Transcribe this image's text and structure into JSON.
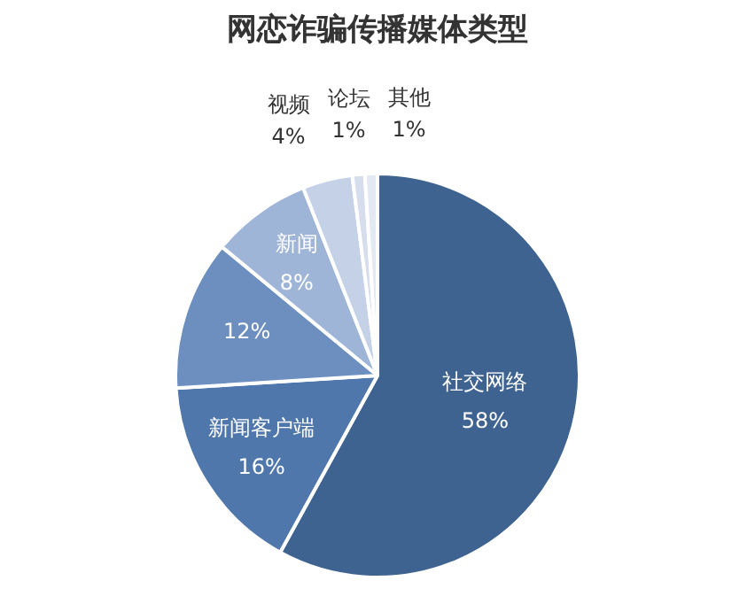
{
  "chart_data": {
    "type": "pie",
    "title": "网恋诈骗传播媒体类型",
    "categories": [
      "社交网络",
      "新闻客户端",
      null,
      "新闻",
      "视频",
      "论坛",
      "其他"
    ],
    "values": [
      58,
      16,
      12,
      8,
      4,
      1,
      1
    ],
    "colors": [
      "#3f6391",
      "#4f77ab",
      "#6d8fc0",
      "#9fb5d8",
      "#c4d1e7",
      "#d6deee",
      "#e3e9f3"
    ],
    "value_labels": [
      "58%",
      "16%",
      "12%",
      "8%",
      "4%",
      "1%",
      "1%"
    ],
    "legend": false
  }
}
